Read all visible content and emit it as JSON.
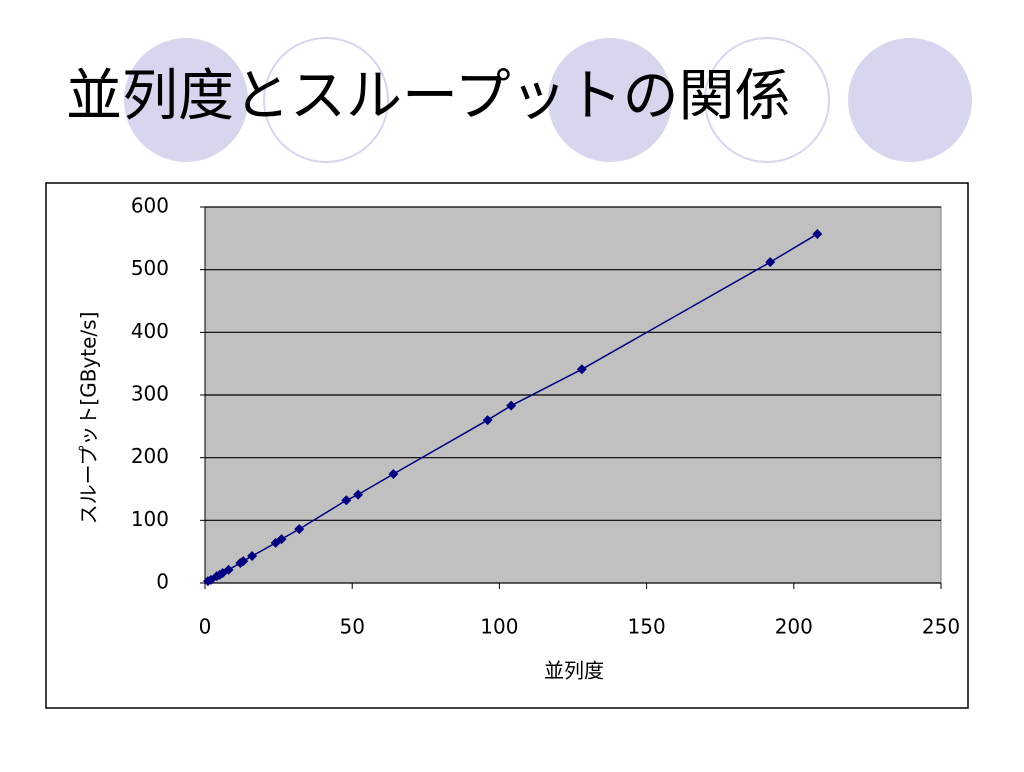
{
  "chart_data": {
    "type": "line",
    "title": "並列度とスループットの関係",
    "x_label": "並列度",
    "y_label": "スループット[GByte/s]",
    "x": [
      1,
      2,
      4,
      5,
      6,
      8,
      12,
      13,
      16,
      24,
      26,
      32,
      48,
      52,
      64,
      96,
      104,
      128,
      192,
      208
    ],
    "values": [
      3,
      5,
      11,
      13,
      16,
      21,
      32,
      35,
      43,
      64,
      70,
      86,
      132,
      141,
      174,
      260,
      283,
      341,
      512,
      557
    ],
    "color": "#000080",
    "xlim": [
      0,
      250
    ],
    "xticks": [
      0,
      50,
      100,
      150,
      200,
      250
    ],
    "ylim": [
      0,
      600
    ],
    "yticks": [
      0,
      100,
      200,
      300,
      400,
      500,
      600
    ],
    "grid": true,
    "plot_background": "#c0c0c0"
  }
}
